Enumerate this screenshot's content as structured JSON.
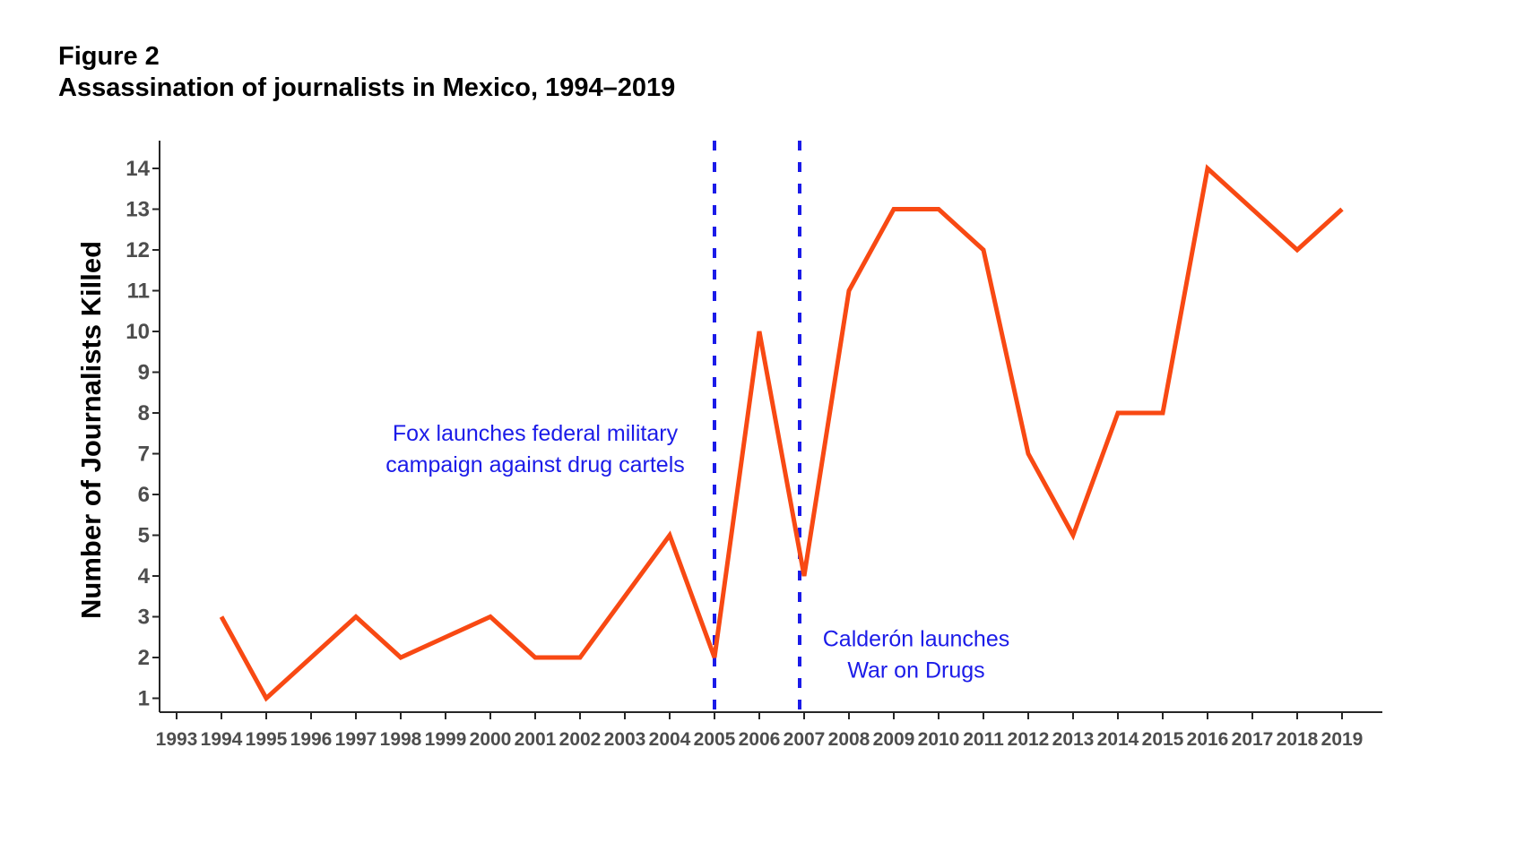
{
  "chart_data": {
    "type": "line",
    "title": "Figure 2",
    "subtitle": "Assassination of journalists in Mexico, 1994–2019",
    "xlabel": "",
    "ylabel": "Number of Journalists Killed",
    "x_ticks": [
      1993,
      1994,
      1995,
      1996,
      1997,
      1998,
      1999,
      2000,
      2001,
      2002,
      2003,
      2004,
      2005,
      2006,
      2007,
      2008,
      2009,
      2010,
      2011,
      2012,
      2013,
      2014,
      2015,
      2016,
      2017,
      2018,
      2019
    ],
    "y_ticks": [
      1,
      2,
      3,
      4,
      5,
      6,
      7,
      8,
      9,
      10,
      11,
      12,
      13,
      14
    ],
    "xlim": [
      1993,
      2019.9
    ],
    "ylim": [
      1,
      14
    ],
    "grid": false,
    "legend": false,
    "axis_color": "#262626",
    "tick_label_color": "#4D4D4D",
    "series": [
      {
        "color": "#F84913",
        "years": [
          1994,
          1995,
          1996,
          1997,
          1998,
          1999,
          2000,
          2001,
          2002,
          2003,
          2004,
          2005,
          2006,
          2007,
          2008,
          2009,
          2010,
          2011,
          2012,
          2013,
          2014,
          2015,
          2016,
          2017,
          2018,
          2019
        ],
        "values": [
          3,
          1,
          2,
          3,
          2,
          2.5,
          3,
          2,
          2,
          3.5,
          5,
          2,
          10,
          4,
          11,
          13,
          13,
          12,
          7,
          5,
          8,
          8,
          14,
          13,
          12,
          13
        ]
      }
    ],
    "events": [
      {
        "x_year": 2005,
        "color": "#1B1BE8",
        "annotation_lines": [
          "Fox launches federal military",
          "campaign against drug cartels"
        ],
        "annotation_x_year": 2001,
        "annotation_y_value": 7.5
      },
      {
        "x_year": 2006.9,
        "color": "#1B1BE8",
        "annotation_lines": [
          "Calderón launches",
          "War on Drugs"
        ],
        "annotation_x_year": 2009.5,
        "annotation_y_value": 2.45
      }
    ]
  }
}
